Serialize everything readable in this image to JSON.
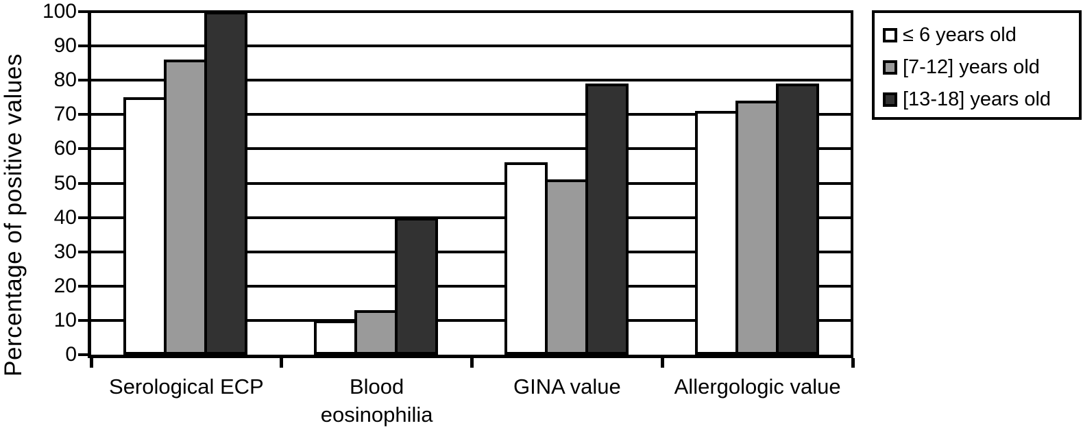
{
  "chart_data": {
    "type": "bar",
    "title": "",
    "xlabel": "",
    "ylabel": "Percentage of positive values",
    "ylim": [
      0,
      100
    ],
    "yticks": [
      0,
      10,
      20,
      30,
      40,
      50,
      60,
      70,
      80,
      90,
      100
    ],
    "grid": "horizontal",
    "legend_position": "top-right-outside",
    "bar_outline_color": "#000000",
    "categories": [
      "Serological ECP",
      "Blood\neosinophilia",
      "GINA value",
      "Allergologic value"
    ],
    "series": [
      {
        "name": "≤ 6 years old",
        "color": "#ffffff",
        "values": [
          75,
          10,
          56,
          71
        ]
      },
      {
        "name": "[7-12] years old",
        "color": "#9a9a9a",
        "values": [
          86,
          13,
          51,
          74
        ]
      },
      {
        "name": "[13-18] years old",
        "color": "#323232",
        "values": [
          100,
          40,
          79,
          79
        ]
      }
    ]
  }
}
